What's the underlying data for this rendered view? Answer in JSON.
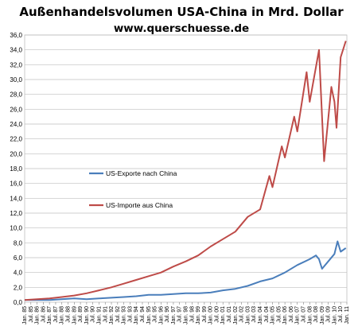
{
  "chart_data": {
    "type": "line",
    "title": "Außenhandelsvolumen  USA-China  in Mrd. Dollar",
    "subtitle": "www.querschuesse.de",
    "xlabel": "",
    "ylabel": "",
    "ylim": [
      0,
      36
    ],
    "y_ticks": [
      "0,0",
      "2,0",
      "4,0",
      "6,0",
      "8,0",
      "10,0",
      "12,0",
      "14,0",
      "16,0",
      "18,0",
      "20,0",
      "22,0",
      "24,0",
      "26,0",
      "28,0",
      "30,0",
      "32,0",
      "34,0",
      "36,0"
    ],
    "x_range": [
      "1985-01",
      "2011-01"
    ],
    "x_ticks": [
      "Jan. 85",
      "Jul. 85",
      "Jan. 86",
      "Jul. 86",
      "Jan. 87",
      "Jul. 87",
      "Jan. 88",
      "Jul. 88",
      "Jan. 89",
      "Jul. 89",
      "Jan. 90",
      "Jul. 90",
      "Jan. 91",
      "Jul. 91",
      "Jan. 92",
      "Jul. 92",
      "Jan. 93",
      "Jul. 93",
      "Jan. 94",
      "Jul. 94",
      "Jan. 95",
      "Jul. 95",
      "Jan. 96",
      "Jul. 96",
      "Jan. 97",
      "Jul. 97",
      "Jan. 98",
      "Jul. 98",
      "Jan. 99",
      "Jul. 99",
      "Jan. 00",
      "Jul. 00",
      "Jan. 01",
      "Jul. 01",
      "Jan. 02",
      "Jul. 02",
      "Jan. 03",
      "Jul. 03",
      "Jan. 04",
      "Jul. 04",
      "Jan. 05",
      "Jul. 05",
      "Jan. 06",
      "Jul. 06",
      "Jan. 07",
      "Jul. 07",
      "Jan. 08",
      "Jul. 08",
      "Jan. 09",
      "Jul. 09",
      "Jan. 10",
      "Jul. 10",
      "Jan. 11"
    ],
    "grid": true,
    "legend_position": "center-left",
    "series": [
      {
        "name": "US-Exporte nach China",
        "color": "#4a7ebb",
        "x": [
          "1985-01",
          "1986-01",
          "1987-01",
          "1988-01",
          "1989-01",
          "1990-01",
          "1991-01",
          "1992-01",
          "1993-01",
          "1994-01",
          "1995-01",
          "1996-01",
          "1997-01",
          "1998-01",
          "1999-01",
          "2000-01",
          "2001-01",
          "2002-01",
          "2003-01",
          "2004-01",
          "2005-01",
          "2006-01",
          "2007-01",
          "2008-01",
          "2008-07",
          "2008-10",
          "2009-01",
          "2009-07",
          "2010-01",
          "2010-04",
          "2010-07",
          "2010-12"
        ],
        "values": [
          0.3,
          0.3,
          0.3,
          0.4,
          0.5,
          0.4,
          0.5,
          0.6,
          0.7,
          0.8,
          1.0,
          1.0,
          1.1,
          1.2,
          1.2,
          1.3,
          1.6,
          1.8,
          2.2,
          2.8,
          3.2,
          4.0,
          5.0,
          5.8,
          6.3,
          5.8,
          4.5,
          5.5,
          6.5,
          8.2,
          6.8,
          7.3
        ]
      },
      {
        "name": "US-Importe aus China",
        "color": "#be4b48",
        "x": [
          "1985-01",
          "1986-01",
          "1987-01",
          "1988-01",
          "1989-01",
          "1990-01",
          "1991-01",
          "1992-01",
          "1993-01",
          "1994-01",
          "1995-01",
          "1996-01",
          "1997-01",
          "1998-01",
          "1999-01",
          "2000-01",
          "2001-01",
          "2002-01",
          "2003-01",
          "2004-01",
          "2004-10",
          "2005-01",
          "2005-10",
          "2006-01",
          "2006-10",
          "2007-01",
          "2007-10",
          "2008-01",
          "2008-10",
          "2009-01",
          "2009-03",
          "2009-10",
          "2010-01",
          "2010-03",
          "2010-07",
          "2010-12"
        ],
        "values": [
          0.3,
          0.4,
          0.5,
          0.7,
          0.9,
          1.2,
          1.6,
          2.0,
          2.5,
          3.0,
          3.5,
          4.0,
          4.8,
          5.5,
          6.3,
          7.5,
          8.5,
          9.5,
          11.5,
          12.5,
          17.0,
          15.5,
          21.0,
          19.5,
          25.0,
          23.0,
          31.0,
          27.0,
          34.0,
          25.0,
          19.0,
          29.0,
          27.0,
          23.5,
          33.0,
          35.2
        ]
      }
    ]
  }
}
